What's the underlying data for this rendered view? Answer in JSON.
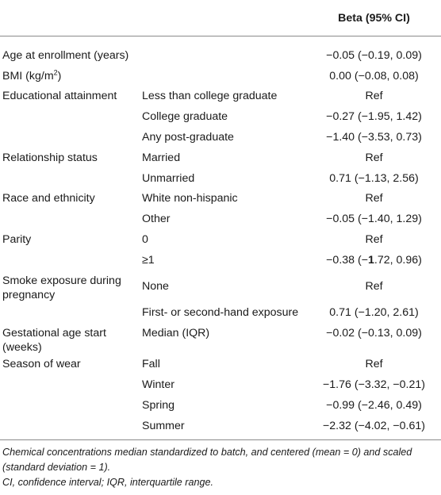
{
  "header": {
    "col1": "",
    "col2": "",
    "col3": "Beta (95% CI)"
  },
  "rows": [
    {
      "variable": "Age at enrollment (years)",
      "category": "",
      "beta": "−0.05 (−0.19, 0.09)"
    },
    {
      "variable": "BMI (kg/m",
      "variable_sup": "2",
      "variable_tail": ")",
      "category": "",
      "beta": "0.00 (−0.08, 0.08)"
    },
    {
      "variable": "Educational attainment",
      "category": "Less than college graduate",
      "beta": "Ref"
    },
    {
      "variable": "",
      "category": "College graduate",
      "beta": "−0.27 (−1.95, 1.42)"
    },
    {
      "variable": "",
      "category": "Any post-graduate",
      "beta": "−1.40 (−3.53, 0.73)"
    },
    {
      "variable": "Relationship status",
      "category": "Married",
      "beta": "Ref"
    },
    {
      "variable": "",
      "category": "Unmarried",
      "beta": "0.71 (−1.13, 2.56)"
    },
    {
      "variable": "Race and ethnicity",
      "category": "White non-hispanic",
      "beta": "Ref"
    },
    {
      "variable": "",
      "category": "Other",
      "beta": "−0.05 (−1.40, 1.29)"
    },
    {
      "variable": "Parity",
      "category": "0",
      "beta": "Ref"
    },
    {
      "variable": "",
      "category": "≥1",
      "beta_pre": "−0.38 (−",
      "beta_bold": "1",
      "beta_post": ".72, 0.96)"
    },
    {
      "variable": "Smoke exposure during pregnancy",
      "category": "None",
      "beta": "Ref"
    },
    {
      "variable": "",
      "category": "First- or second-hand exposure",
      "beta": "0.71 (−1.20, 2.61)"
    },
    {
      "variable": "Gestational age start (weeks)",
      "category": "Median (IQR)",
      "beta": "−0.02 (−0.13, 0.09)"
    },
    {
      "variable": "Season of wear",
      "category": "Fall",
      "beta": "Ref"
    },
    {
      "variable": "",
      "category": "Winter",
      "beta": "−1.76 (−3.32, −0.21)"
    },
    {
      "variable": "",
      "category": "Spring",
      "beta": "−0.99 (−2.46, 0.49)"
    },
    {
      "variable": "",
      "category": "Summer",
      "beta": "−2.32 (−4.02, −0.61)"
    }
  ],
  "footnotes": [
    "Chemical concentrations median standardized to batch, and centered (mean = 0) and scaled (standard deviation = 1).",
    "CI, confidence interval; IQR, interquartile range."
  ]
}
